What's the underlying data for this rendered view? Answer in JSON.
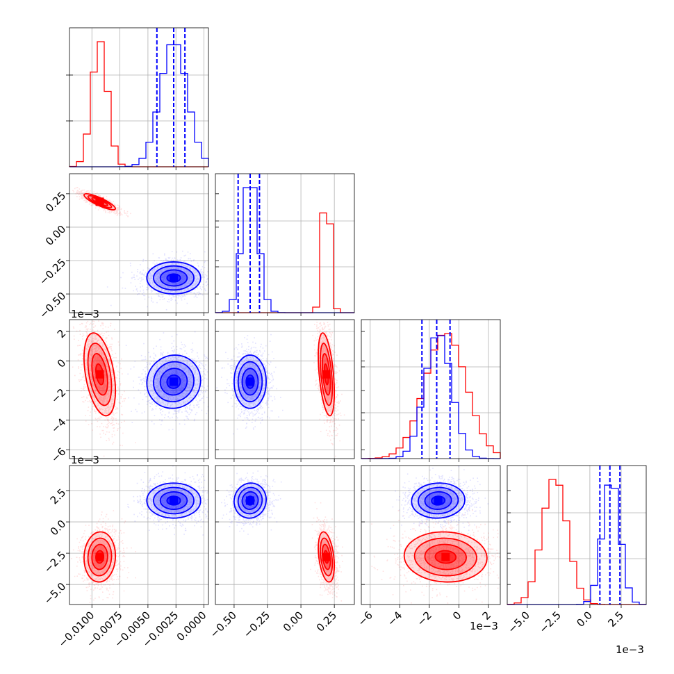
{
  "chart_data": {
    "type": "corner",
    "grid": true,
    "parameter_count": 4,
    "series": [
      {
        "color": "#ff0000",
        "params": [
          {
            "center": -0.0093,
            "std": 0.0007
          },
          {
            "center": 0.19,
            "std": 0.03
          },
          {
            "center": -0.0009,
            "std": 0.0014
          },
          {
            "center": -0.0028,
            "std": 0.001
          }
        ]
      },
      {
        "color": "#0000ff",
        "params": [
          {
            "center": -0.0027,
            "std": 0.0012
          },
          {
            "center": -0.38,
            "std": 0.06
          },
          {
            "center": -0.0014,
            "std": 0.0009
          },
          {
            "center": 0.0017,
            "std": 0.0007
          }
        ]
      }
    ],
    "quantile_lines": [
      [
        -0.0042,
        -0.0027,
        -0.0017
      ],
      [
        -0.47,
        -0.38,
        -0.31
      ],
      [
        -0.0025,
        -0.0015,
        -0.0006
      ],
      [
        0.0008,
        0.0016,
        0.0024
      ]
    ],
    "axes": [
      {
        "range": [
          -0.012,
          0.0004
        ],
        "ticks": [
          -0.01,
          -0.0075,
          -0.005,
          -0.0025,
          0.0
        ],
        "tick_labels": [
          "−0.0100",
          "−0.0075",
          "−0.0050",
          "−0.0025",
          "0.0000"
        ],
        "offset_label": ""
      },
      {
        "range": [
          -0.64,
          0.4
        ],
        "ticks": [
          -0.5,
          -0.25,
          0.0,
          0.25
        ],
        "tick_labels": [
          "−0.50",
          "−0.25",
          "0.00",
          "0.25"
        ],
        "offset_label": ""
      },
      {
        "range": [
          -0.0066,
          0.0028
        ],
        "ticks": [
          -0.006,
          -0.004,
          -0.002,
          0.0,
          0.002
        ],
        "tick_labels": [
          "−6",
          "−4",
          "−2",
          "0",
          "2"
        ],
        "offset_label": "1e−3"
      },
      {
        "range": [
          -0.0066,
          0.0045
        ],
        "ticks": [
          -0.005,
          -0.0025,
          0.0,
          0.0025
        ],
        "tick_labels": [
          "−5.0",
          "−2.5",
          "0.0",
          "2.5"
        ],
        "offset_label": "1e−3"
      }
    ]
  }
}
